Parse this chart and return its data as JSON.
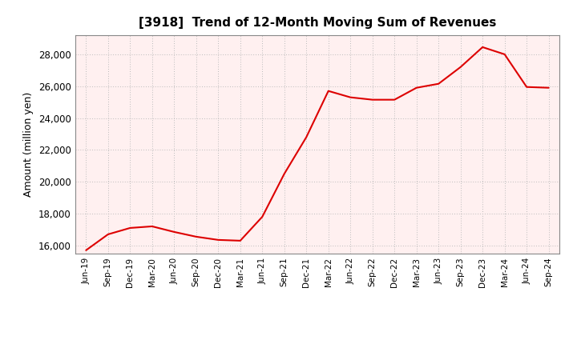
{
  "title": "[3918]  Trend of 12-Month Moving Sum of Revenues",
  "ylabel": "Amount (million yen)",
  "line_color": "#dd0000",
  "background_color": "#ffffff",
  "plot_bg_color": "#fff0f0",
  "grid_color": "#bbbbbb",
  "x_labels": [
    "Jun-19",
    "Sep-19",
    "Dec-19",
    "Mar-20",
    "Jun-20",
    "Sep-20",
    "Dec-20",
    "Mar-21",
    "Jun-21",
    "Sep-21",
    "Dec-21",
    "Mar-22",
    "Jun-22",
    "Sep-22",
    "Dec-22",
    "Mar-23",
    "Jun-23",
    "Sep-23",
    "Dec-23",
    "Mar-24",
    "Jun-24",
    "Sep-24"
  ],
  "y_values": [
    15700,
    16700,
    17100,
    17200,
    16850,
    16550,
    16350,
    16300,
    17800,
    20500,
    22800,
    25700,
    25300,
    25150,
    25150,
    25900,
    26150,
    27200,
    28450,
    28000,
    25950,
    25900
  ],
  "ylim_min": 15500,
  "ylim_max": 29200,
  "yticks": [
    16000,
    18000,
    20000,
    22000,
    24000,
    26000,
    28000
  ]
}
